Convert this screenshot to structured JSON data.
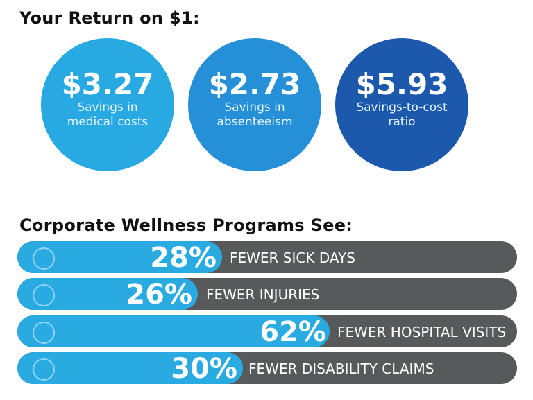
{
  "header": {
    "title": "Your Return on $1:"
  },
  "returns": [
    {
      "value": "$3.27",
      "lines": [
        "Savings in",
        "medical costs"
      ]
    },
    {
      "value": "$2.73",
      "lines": [
        "Savings in",
        "absenteeism"
      ]
    },
    {
      "value": "$5.93",
      "lines": [
        "Savings-to-cost",
        "ratio"
      ]
    }
  ],
  "section": {
    "title": "Corporate Wellness Programs See:"
  },
  "stats": [
    {
      "percent": "28%",
      "label": "FEWER SICK DAYS"
    },
    {
      "percent": "26%",
      "label": "FEWER INJURIES"
    },
    {
      "percent": "62%",
      "label": "FEWER HOSPITAL VISITS"
    },
    {
      "percent": "30%",
      "label": "FEWER DISABILITY CLAIMS"
    }
  ]
}
